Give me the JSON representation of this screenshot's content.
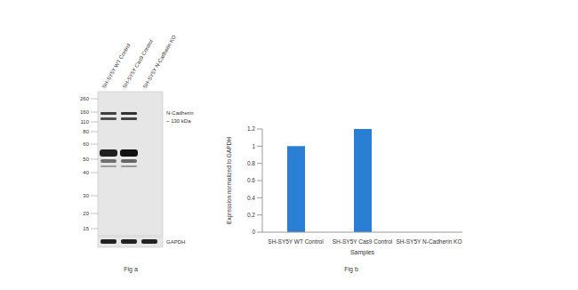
{
  "blot": {
    "lanes": [
      "SH-SY5Y WT Control",
      "SH-SY5Y Cas9 Control",
      "SH-SY5Y N-Cadherin KO"
    ],
    "markers": [
      260,
      160,
      110,
      80,
      60,
      50,
      40,
      30,
      20,
      15
    ],
    "target_label": [
      "N-Cadherin",
      "~ 130 kDa"
    ],
    "loading_label": "GAPDH",
    "caption": "Fig a"
  },
  "chart_data": {
    "type": "bar",
    "caption": "Fig b",
    "categories": [
      "SH-SY5Y WT Control",
      "SH-SY5Y Cas9 Control",
      "SH-SY5Y N-Cadherin KO"
    ],
    "values": [
      1,
      1.2,
      0
    ],
    "color": "#2a7fd4",
    "ylim": [
      0,
      1.2
    ],
    "yticks": [
      0,
      0.2,
      0.4,
      0.6,
      0.8,
      1,
      1.2
    ],
    "xlabel": "Samples",
    "ylabel": "Expression normalized to GAPDH",
    "grid": false
  }
}
